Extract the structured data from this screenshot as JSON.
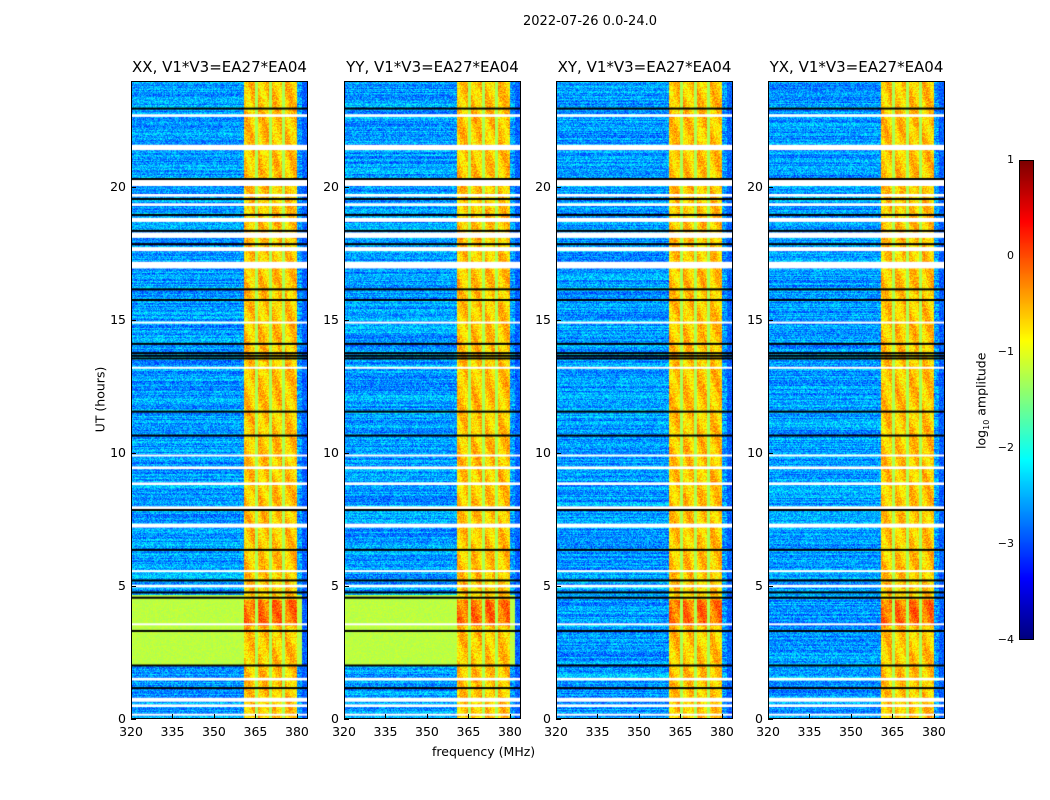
{
  "suptitle": "2022-07-26 0.0-24.0",
  "chart_data": {
    "type": "heatmap",
    "title": "2022-07-26 0.0-24.0",
    "xlabel": "frequency (MHz)",
    "ylabel": "UT (hours)",
    "xlim": [
      320,
      384
    ],
    "ylim": [
      0,
      24
    ],
    "xticks": [
      "320",
      "335",
      "350",
      "365",
      "380"
    ],
    "yticks": [
      "0",
      "5",
      "10",
      "15",
      "20"
    ],
    "panels": [
      {
        "title": "XX, V1*V3=EA27*EA04",
        "pol": "XX",
        "bright_low_band": true
      },
      {
        "title": "YY, V1*V3=EA27*EA04",
        "pol": "YY",
        "bright_low_band": true
      },
      {
        "title": "XY, V1*V3=EA27*EA04",
        "pol": "XY",
        "bright_low_band": false
      },
      {
        "title": "YX, V1*V3=EA27*EA04",
        "pol": "YX",
        "bright_low_band": false
      }
    ],
    "strong_band_mhz": [
      360.5,
      379.8
    ],
    "subband_edges_mhz": [
      365.3,
      370.2,
      375.0
    ],
    "background_log_amp": -2.6,
    "band_log_amp": -0.6,
    "flagged_hours": [
      [
        0.15,
        0.2
      ],
      [
        0.45,
        0.55
      ],
      [
        0.65,
        0.8
      ],
      [
        1.45,
        1.55
      ],
      [
        3.55,
        3.6
      ],
      [
        4.95,
        5.05
      ],
      [
        5.55,
        5.6
      ],
      [
        7.2,
        7.35
      ],
      [
        7.9,
        8.0
      ],
      [
        8.8,
        8.9
      ],
      [
        9.4,
        9.5
      ],
      [
        9.9,
        9.95
      ],
      [
        13.2,
        13.25
      ],
      [
        14.9,
        14.95
      ],
      [
        16.95,
        17.2
      ],
      [
        17.6,
        17.75
      ],
      [
        18.1,
        18.3
      ],
      [
        18.7,
        18.85
      ],
      [
        19.3,
        19.4
      ],
      [
        19.65,
        19.75
      ],
      [
        20.05,
        20.3
      ],
      [
        21.4,
        21.6
      ],
      [
        22.65,
        22.75
      ]
    ],
    "black_lines_hours": [
      1.2,
      2.05,
      3.35,
      4.6,
      4.8,
      5.25,
      6.4,
      7.9,
      10.7,
      11.6,
      13.6,
      13.7,
      13.8,
      14.15,
      15.8,
      16.2,
      17.9,
      18.4,
      19.0,
      19.6,
      20.35,
      23.0
    ],
    "colorbar": {
      "label": "log10 amplitude",
      "label_main": "log",
      "label_sub": "10",
      "label_rest": " amplitude",
      "vmin": -4,
      "vmax": 1,
      "ticks": [
        "1",
        "0",
        "−1",
        "−2",
        "−3",
        "−4"
      ],
      "colormap": "jet"
    }
  }
}
